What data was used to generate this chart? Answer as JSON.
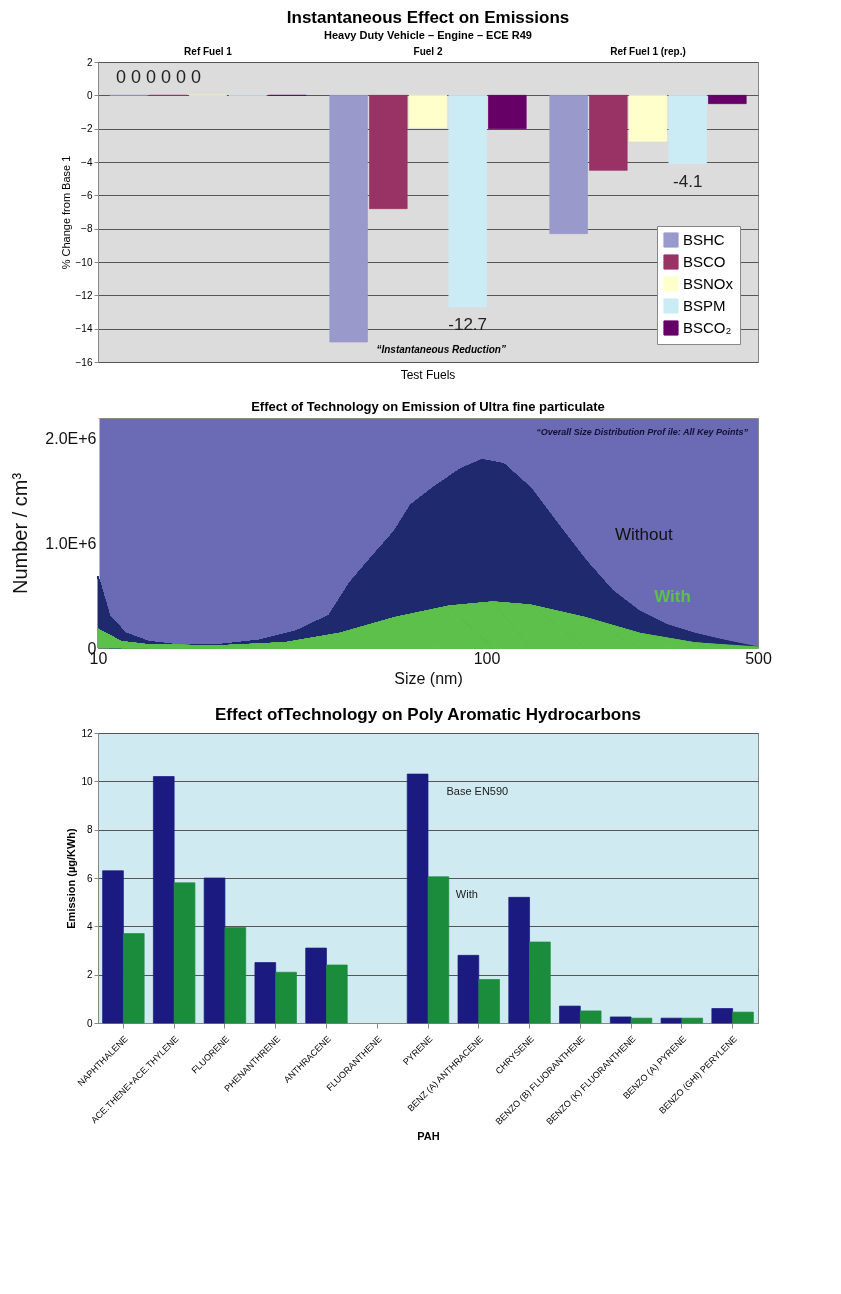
{
  "chart_data": [
    {
      "type": "bar",
      "title": "Instantaneous Effect on Emissions",
      "subtitle": "Heavy Duty Vehicle – Engine – ECE R49",
      "xlabel": "Test Fuels",
      "ylabel": "% Change from Base 1",
      "categories": [
        "Ref Fuel 1",
        "Fuel 2",
        "Ref Fuel 1 (rep.)"
      ],
      "series": [
        {
          "name": "BSHC",
          "color": "#9999cc",
          "values": [
            0,
            -14.8,
            -8.3
          ]
        },
        {
          "name": "BSCO",
          "color": "#993366",
          "values": [
            0,
            -6.8,
            -4.5
          ]
        },
        {
          "name": "BSNOx",
          "color": "#ffffcc",
          "values": [
            0,
            -1.95,
            -2.75
          ]
        },
        {
          "name": "BSPM",
          "color": "#ccecf5",
          "values": [
            0,
            -12.7,
            -4.1
          ],
          "value_labels": [
            null,
            "-12.7",
            "-4.1"
          ]
        },
        {
          "name": "BSCO₂",
          "color": "#660066",
          "values": [
            0,
            -2,
            -0.5
          ]
        }
      ],
      "annotations": [
        "0 0 0 0 0 0",
        "“Instantaneous Reduction”"
      ],
      "ylim": [
        -16,
        2
      ],
      "yticks": [
        -16,
        -14,
        -12,
        -10,
        -8,
        -6,
        -4,
        -2,
        0,
        2
      ],
      "grid": "y",
      "legend": "bottom right"
    },
    {
      "type": "area",
      "title": "Effect of Technology on Emission of Ultra fine particulate",
      "xlabel": "Size (nm)",
      "ylabel": "Number / cm³",
      "series": [
        {
          "name": "Without",
          "color": "#1f2a6e",
          "x": [
            10,
            10.7,
            11.8,
            13.5,
            15.8,
            20.5,
            25.8,
            32.3,
            39.3,
            44.6,
            50.9,
            58,
            63.9,
            72.7,
            85.5,
            97.4,
            110.9,
            130,
            153,
            180,
            211,
            248,
            292,
            343,
            402,
            500
          ],
          "values": [
            680000,
            310000,
            140000,
            60000,
            30000,
            30000,
            70000,
            160000,
            310000,
            630000,
            880000,
            1120000,
            1370000,
            1530000,
            1710000,
            1800000,
            1760000,
            1530000,
            1180000,
            840000,
            550000,
            350000,
            220000,
            140000,
            80000,
            10000
          ]
        },
        {
          "name": "With",
          "color": "#5cc04a",
          "x": [
            10,
            11.5,
            13.5,
            20.5,
            30.3,
            41.9,
            58,
            80,
            103.9,
            130,
            180,
            248,
            343,
            500
          ],
          "values": [
            180000,
            60000,
            30000,
            20000,
            50000,
            140000,
            290000,
            400000,
            440000,
            410000,
            290000,
            140000,
            50000,
            10000
          ]
        }
      ],
      "annotations": [
        "“Overall Size Distribution Prof ile: All Key Points”"
      ],
      "log": "x",
      "xlim": [
        10,
        500
      ],
      "xticks": [
        10,
        100,
        500
      ],
      "ylim": [
        0,
        2200000
      ],
      "yticks": [
        0,
        {
          "value": 1000000,
          "label": "1.0E+6"
        },
        {
          "value": 2000000,
          "label": "2.0E+6"
        }
      ],
      "grid": false,
      "legend": false
    },
    {
      "type": "bar",
      "title": "Effect ofTechnology on Poly Aromatic Hydrocarbons",
      "xlabel": "PAH",
      "ylabel": "Emission (µg/KWh)",
      "categories": [
        "NAPHTHALENE",
        "ACE.THENE+ACE.THYLENE",
        "FLUORENE",
        "PHENANTHRENE",
        "ANTHRACENE",
        "FLUORANTHENE",
        "PYRENE",
        "BENZ (A) ANTHRACENE",
        "CHRYSENE",
        "BENZO (B) FLUORANTHENE",
        "BENZO (K) FLUORANTHENE",
        "BENZO (A) PYRENE",
        "BENZO (GHI) PERYLENE"
      ],
      "series": [
        {
          "name": "Base EN590",
          "color": "#1a1a80",
          "values": [
            6.3,
            10.2,
            6.0,
            2.5,
            3.1,
            null,
            10.3,
            2.8,
            5.2,
            0.7,
            0.25,
            0.2,
            0.6
          ]
        },
        {
          "name": "With",
          "color": "#1a8c3c",
          "values": [
            3.7,
            5.8,
            3.95,
            2.1,
            2.4,
            null,
            6.05,
            1.8,
            3.35,
            0.5,
            0.2,
            0.2,
            0.45
          ]
        }
      ],
      "ylim": [
        0,
        12
      ],
      "yticks": [
        0,
        2,
        4,
        6,
        8,
        10,
        12
      ],
      "grid": "y",
      "legend": false
    }
  ]
}
